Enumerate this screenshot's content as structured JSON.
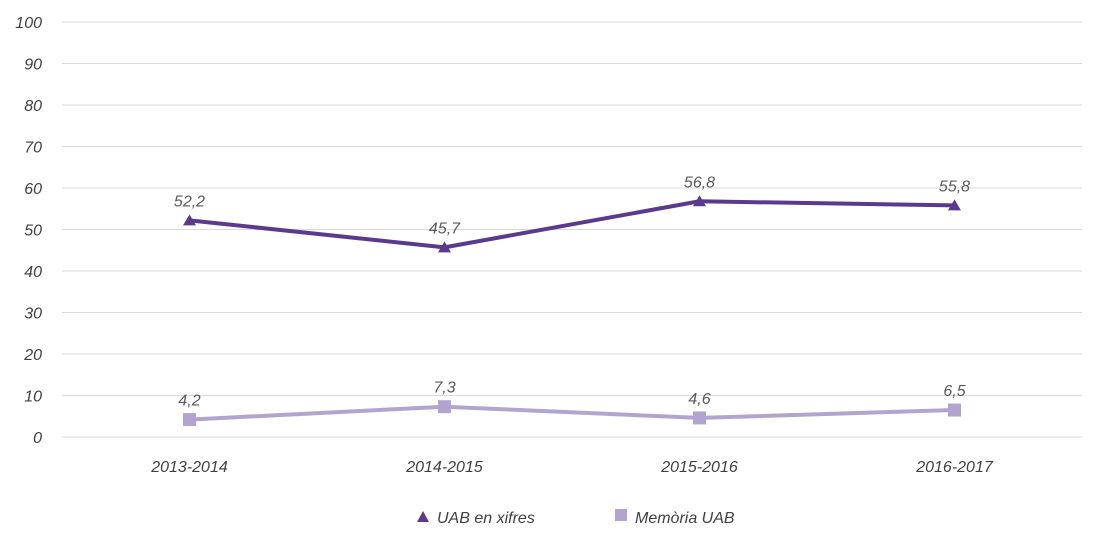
{
  "chart_data": {
    "type": "line",
    "title": "",
    "xlabel": "",
    "ylabel": "",
    "categories": [
      "2013-2014",
      "2014-2015",
      "2015-2016",
      "2016-2017"
    ],
    "ylim": [
      0,
      100
    ],
    "yticks": [
      0,
      10,
      20,
      30,
      40,
      50,
      60,
      70,
      80,
      90,
      100
    ],
    "grid": true,
    "legend_position": "bottom",
    "series": [
      {
        "name": "UAB en xifres",
        "marker": "triangle",
        "color": "#5b3a8e",
        "values": [
          52.2,
          45.7,
          56.8,
          55.8
        ],
        "labels": [
          "52,2",
          "45,7",
          "56,8",
          "55,8"
        ]
      },
      {
        "name": "Memòria UAB",
        "marker": "square",
        "color": "#b3a3cf",
        "values": [
          4.2,
          7.3,
          4.6,
          6.5
        ],
        "labels": [
          "4,2",
          "7,3",
          "4,6",
          "6,5"
        ]
      }
    ]
  }
}
